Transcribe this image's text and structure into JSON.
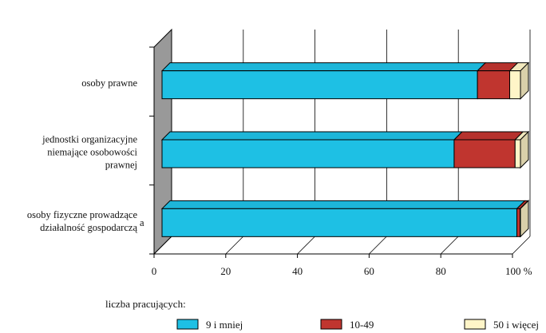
{
  "chart_data": {
    "type": "bar",
    "orientation": "horizontal",
    "stacked": true,
    "three_d": true,
    "categories": [
      [
        "osoby prawne"
      ],
      [
        "jednostki organizacyjne",
        "niemające osobowości",
        "prawnej"
      ],
      [
        "osoby fizyczne prowadzące",
        "działalność gospodarczą"
      ]
    ],
    "category_note_marks": [
      "",
      "",
      "a"
    ],
    "series": [
      {
        "name": "9 i mniej",
        "color": "#1ec0e4",
        "values": [
          88.0,
          81.5,
          99.0
        ]
      },
      {
        "name": "10-49",
        "color": "#c0352f",
        "values": [
          9.0,
          17.0,
          0.9
        ]
      },
      {
        "name": "50 i więcej",
        "color": "#fff5c8",
        "values": [
          3.0,
          1.5,
          0.1
        ]
      }
    ],
    "x_ticks": [
      "0",
      "20",
      "40",
      "60",
      "80",
      "100 %"
    ],
    "xlim": [
      0,
      100
    ],
    "grid": true,
    "legend": {
      "title": "liczba pracujących:",
      "position": "bottom"
    },
    "colors": {
      "wall": "#999999",
      "outline": "#000000"
    }
  }
}
